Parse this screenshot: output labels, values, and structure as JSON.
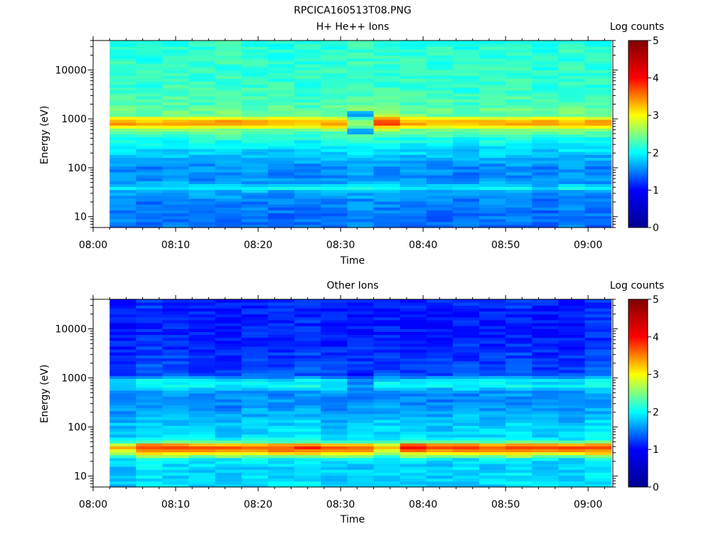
{
  "figure_title": "RPCICA160513T08.PNG",
  "colormap": [
    "#00008f",
    "#0000ff",
    "#00ffff",
    "#ffff00",
    "#ff0000",
    "#800000"
  ],
  "chart_data": [
    {
      "type": "heatmap",
      "title": "H+ He++ Ions",
      "xlabel": "Time",
      "ylabel": "Energy (eV)",
      "yscale": "log",
      "x_ticks": [
        "08:00",
        "08:10",
        "08:20",
        "08:30",
        "08:40",
        "08:50",
        "09:00"
      ],
      "y_ticks": [
        "10",
        "100",
        "1000",
        "10000"
      ],
      "xlim": [
        "08:00",
        "09:03"
      ],
      "ylim": [
        6,
        40000
      ],
      "data_start": "08:02",
      "time_step_minutes": 3.2,
      "colorbar": {
        "label": "Log counts",
        "ticks": [
          "0",
          "1",
          "2",
          "3",
          "4",
          "5"
        ],
        "range": [
          0,
          5
        ]
      },
      "energy_profile": [
        [
          6,
          1.45
        ],
        [
          10,
          1.45
        ],
        [
          20,
          1.5
        ],
        [
          28,
          1.6
        ],
        [
          35,
          1.7
        ],
        [
          40,
          2.1
        ],
        [
          45,
          1.7
        ],
        [
          60,
          1.55
        ],
        [
          100,
          1.55
        ],
        [
          200,
          1.8
        ],
        [
          400,
          2.1
        ],
        [
          600,
          2.5
        ],
        [
          750,
          3.2
        ],
        [
          850,
          3.4
        ],
        [
          1000,
          3.1
        ],
        [
          1200,
          2.45
        ],
        [
          2000,
          2.3
        ],
        [
          5000,
          2.2
        ],
        [
          40000,
          2.15
        ]
      ],
      "time_anomalies": [
        {
          "start": "08:31",
          "end": "08:34",
          "emin": 500,
          "emax": 1500,
          "delta": -0.8
        },
        {
          "start": "08:34",
          "end": "08:37",
          "emin": 600,
          "emax": 1300,
          "delta": 0.3
        }
      ]
    },
    {
      "type": "heatmap",
      "title": "Other Ions",
      "xlabel": "Time",
      "ylabel": "Energy (eV)",
      "yscale": "log",
      "x_ticks": [
        "08:00",
        "08:10",
        "08:20",
        "08:30",
        "08:40",
        "08:50",
        "09:00"
      ],
      "y_ticks": [
        "10",
        "100",
        "1000",
        "10000"
      ],
      "xlim": [
        "08:00",
        "09:03"
      ],
      "ylim": [
        6,
        40000
      ],
      "data_start": "08:02",
      "time_step_minutes": 3.2,
      "colorbar": {
        "label": "Log counts",
        "ticks": [
          "0",
          "1",
          "2",
          "3",
          "4",
          "5"
        ],
        "range": [
          0,
          5
        ]
      },
      "energy_profile": [
        [
          6,
          1.85
        ],
        [
          15,
          1.85
        ],
        [
          22,
          1.9
        ],
        [
          28,
          2.9
        ],
        [
          35,
          3.6
        ],
        [
          42,
          3.8
        ],
        [
          48,
          2.5
        ],
        [
          60,
          1.9
        ],
        [
          150,
          1.75
        ],
        [
          300,
          1.55
        ],
        [
          500,
          1.55
        ],
        [
          700,
          2.0
        ],
        [
          900,
          1.9
        ],
        [
          1200,
          1.3
        ],
        [
          3000,
          1.2
        ],
        [
          10000,
          1.1
        ],
        [
          40000,
          1.15
        ]
      ],
      "time_anomalies": [
        {
          "start": "08:02",
          "end": "08:05",
          "emin": 25,
          "emax": 45,
          "delta": -0.4
        },
        {
          "start": "08:34",
          "end": "08:37",
          "emin": 25,
          "emax": 45,
          "delta": -0.5
        },
        {
          "start": "08:37",
          "end": "08:40",
          "emin": 30,
          "emax": 45,
          "delta": 0.3
        },
        {
          "start": "08:31",
          "end": "08:34",
          "emin": 600,
          "emax": 1200,
          "delta": -0.4
        }
      ]
    }
  ]
}
